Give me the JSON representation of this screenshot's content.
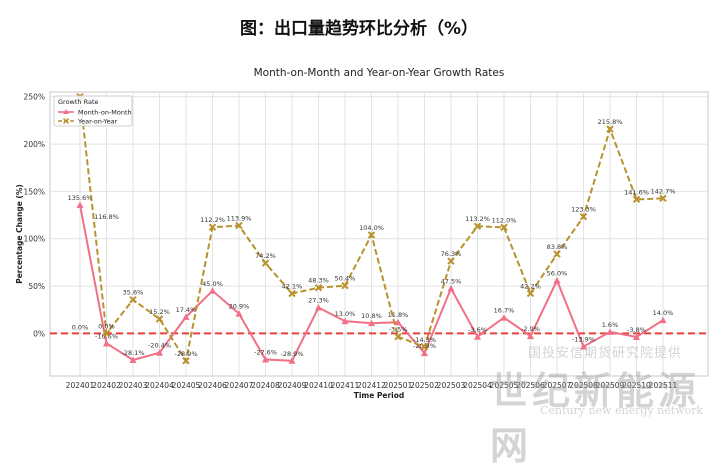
{
  "page_title": "图：出口量趋势环比分析（%）",
  "watermark": {
    "cn_small": "国投安信期货研究院提供",
    "cn_big": "世纪新能源网",
    "en": "Century new energy network"
  },
  "chart_data": {
    "type": "line",
    "title": "Month-on-Month and Year-on-Year Growth Rates",
    "xlabel": "Time Period",
    "ylabel": "Percentage Change (%)",
    "legend_title": "Growth Rate",
    "legend_position": "top-left",
    "grid": true,
    "ylim": [
      -45,
      255
    ],
    "yticks": [
      0,
      50,
      100,
      150,
      200,
      250
    ],
    "ytick_labels": [
      "0%",
      "50%",
      "100%",
      "150%",
      "200%",
      "250%"
    ],
    "reference_line": {
      "y": 0,
      "color": "#e8403f",
      "style": "dashed"
    },
    "categories": [
      "202401",
      "202402",
      "202403",
      "202404",
      "202405",
      "202406",
      "202407",
      "202408",
      "202409",
      "202410",
      "202411",
      "202412",
      "202501",
      "202502",
      "202503",
      "202504",
      "202505",
      "202506",
      "202507",
      "202508",
      "202509",
      "202510",
      "202511"
    ],
    "series": [
      {
        "name": "Month-on-Month",
        "color": "#f07088",
        "style": "solid",
        "marker": "triangle",
        "values": [
          135.6,
          -10.6,
          -28.1,
          -20.4,
          17.4,
          45.0,
          20.9,
          -27.6,
          -28.9,
          27.3,
          13.0,
          10.8,
          11.8,
          -20.8,
          47.5,
          -3.6,
          16.7,
          -2.9,
          56.0,
          -13.9,
          1.6,
          -3.8,
          14.0
        ],
        "labels": [
          "135.6%",
          "-10.6%",
          "-28.1%",
          "-20.4%",
          "17.4%",
          "45.0%",
          "20.9%",
          "-27.6%",
          "-28.9%",
          "27.3%",
          "13.0%",
          "10.8%",
          "11.8%",
          "-20.8%",
          "47.5%",
          "-3.6%",
          "16.7%",
          "-2.9%",
          "56.0%",
          "-13.9%",
          "1.6%",
          "-3.8%",
          "14.0%"
        ]
      },
      {
        "name": "Year-on-Year",
        "color": "#b8922e",
        "style": "dashed",
        "marker": "x",
        "values": [
          250,
          0.0,
          35.6,
          15.2,
          -28.9,
          112.2,
          113.9,
          74.2,
          42.1,
          48.3,
          50.4,
          104.0,
          -3.5,
          -14.3,
          76.3,
          113.2,
          112.0,
          42.2,
          83.8,
          123.3,
          215.8,
          141.6,
          142.7
        ],
        "labels": [
          "",
          "0.0%",
          "35.6%",
          "15.2%",
          "-28.9%",
          "112.2%",
          "113.9%",
          "74.2%",
          "42.1%",
          "48.3%",
          "50.4%",
          "104.0%",
          "-3.5%",
          "-14.3%",
          "76.3%",
          "113.2%",
          "112.0%",
          "42.2%",
          "83.8%",
          "123.3%",
          "215.8%",
          "141.6%",
          "142.7%"
        ]
      }
    ],
    "extra_labels": [
      {
        "series": "Month-on-Month",
        "index": 0,
        "text": "0.0%"
      },
      {
        "series": "Year-on-Year",
        "index": 1,
        "text": "116.8%"
      }
    ]
  }
}
